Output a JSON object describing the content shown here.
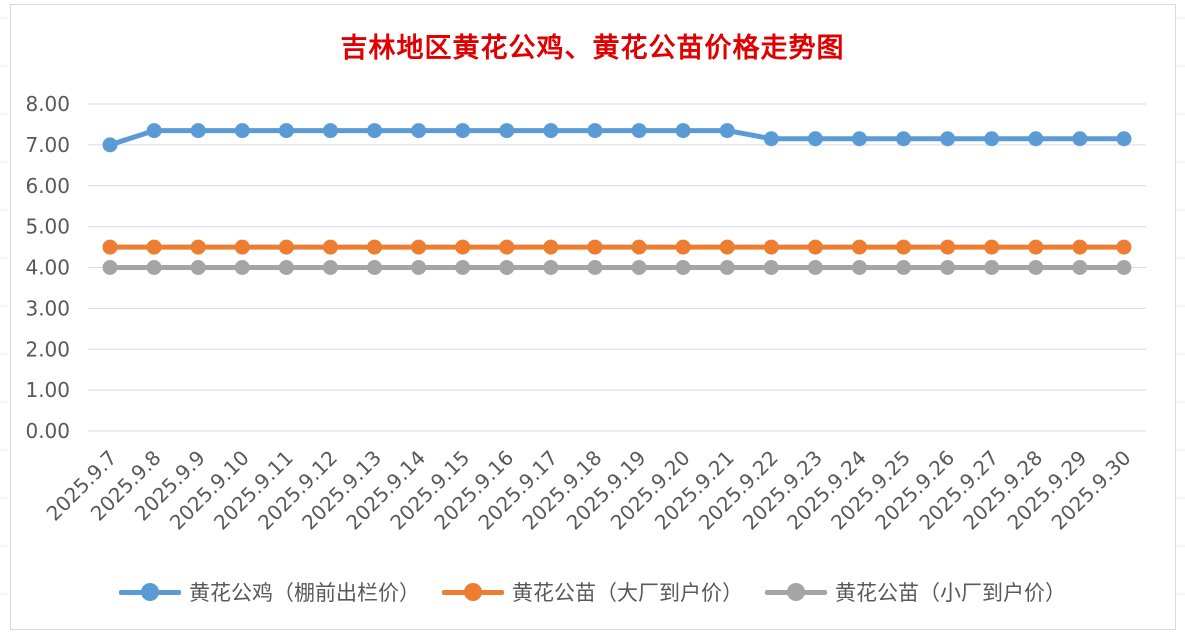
{
  "chart_data": {
    "type": "line",
    "title": "吉林地区黄花公鸡、黄花公苗价格走势图",
    "categories": [
      "2025.9.7",
      "2025.9.8",
      "2025.9.9",
      "2025.9.10",
      "2025.9.11",
      "2025.9.12",
      "2025.9.13",
      "2025.9.14",
      "2025.9.15",
      "2025.9.16",
      "2025.9.17",
      "2025.9.18",
      "2025.9.19",
      "2025.9.20",
      "2025.9.21",
      "2025.9.22",
      "2025.9.23",
      "2025.9.24",
      "2025.9.25",
      "2025.9.26",
      "2025.9.27",
      "2025.9.28",
      "2025.9.29",
      "2025.9.30"
    ],
    "series": [
      {
        "name": "黄花公鸡（棚前出栏价）",
        "color": "#5b9bd5",
        "values": [
          7.0,
          7.35,
          7.35,
          7.35,
          7.35,
          7.35,
          7.35,
          7.35,
          7.35,
          7.35,
          7.35,
          7.35,
          7.35,
          7.35,
          7.35,
          7.15,
          7.15,
          7.15,
          7.15,
          7.15,
          7.15,
          7.15,
          7.15,
          7.15
        ]
      },
      {
        "name": "黄花公苗（大厂到户价）",
        "color": "#ed7d31",
        "values": [
          4.5,
          4.5,
          4.5,
          4.5,
          4.5,
          4.5,
          4.5,
          4.5,
          4.5,
          4.5,
          4.5,
          4.5,
          4.5,
          4.5,
          4.5,
          4.5,
          4.5,
          4.5,
          4.5,
          4.5,
          4.5,
          4.5,
          4.5,
          4.5
        ]
      },
      {
        "name": "黄花公苗（小厂到户价）",
        "color": "#a5a5a5",
        "values": [
          4.0,
          4.0,
          4.0,
          4.0,
          4.0,
          4.0,
          4.0,
          4.0,
          4.0,
          4.0,
          4.0,
          4.0,
          4.0,
          4.0,
          4.0,
          4.0,
          4.0,
          4.0,
          4.0,
          4.0,
          4.0,
          4.0,
          4.0,
          4.0
        ]
      }
    ],
    "ylim": [
      0,
      8
    ],
    "yticks": [
      "0.00",
      "1.00",
      "2.00",
      "3.00",
      "4.00",
      "5.00",
      "6.00",
      "7.00",
      "8.00"
    ],
    "grid": true,
    "legend_position": "bottom"
  }
}
